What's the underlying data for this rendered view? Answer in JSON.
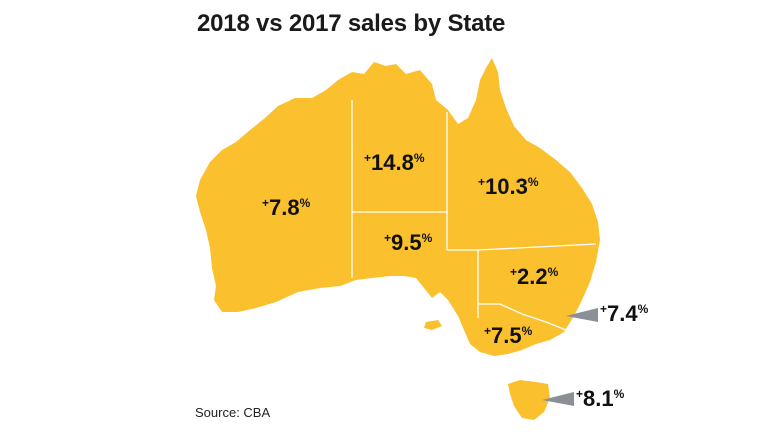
{
  "title": "2018 vs 2017 sales by State",
  "source": "Source: CBA",
  "colors": {
    "map_fill": "#FBC02D",
    "border": "#FFFFFF",
    "pointer": "#8A9096",
    "text": "#111111"
  },
  "states": [
    {
      "id": "wa",
      "sign": "+",
      "value": "7.8",
      "pct": "%"
    },
    {
      "id": "nt",
      "sign": "+",
      "value": "14.8",
      "pct": "%"
    },
    {
      "id": "qld",
      "sign": "+",
      "value": "10.3",
      "pct": "%"
    },
    {
      "id": "sa",
      "sign": "+",
      "value": "9.5",
      "pct": "%"
    },
    {
      "id": "nsw",
      "sign": "+",
      "value": "2.2",
      "pct": "%"
    },
    {
      "id": "act",
      "sign": "+",
      "value": "7.4",
      "pct": "%"
    },
    {
      "id": "vic",
      "sign": "+",
      "value": "7.5",
      "pct": "%"
    },
    {
      "id": "tas",
      "sign": "+",
      "value": "8.1",
      "pct": "%"
    }
  ]
}
